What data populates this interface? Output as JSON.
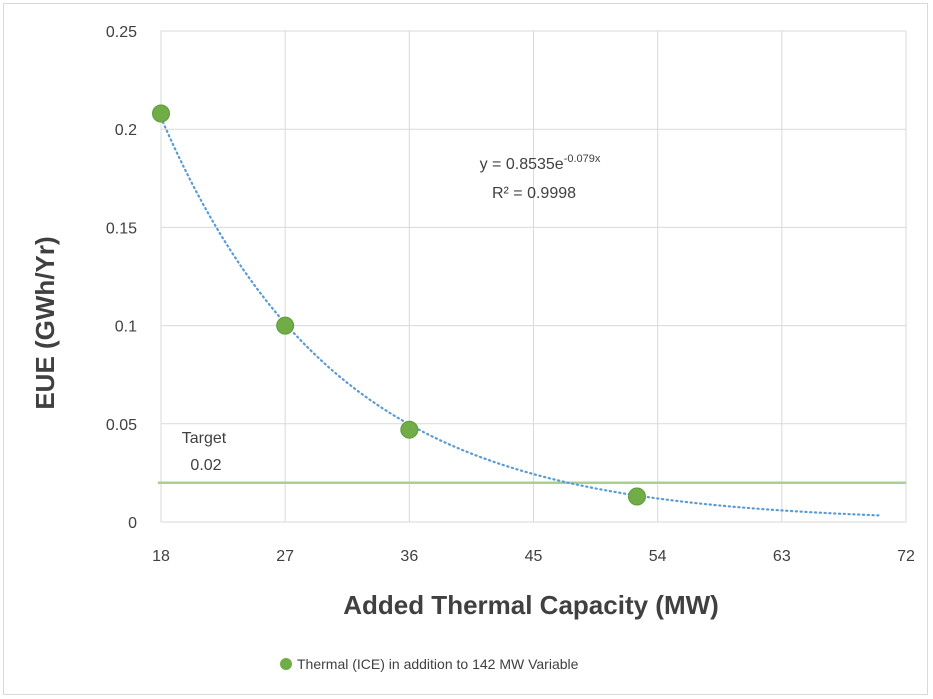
{
  "chart_data": {
    "type": "scatter",
    "xlabel": "Added Thermal Capacity (MW)",
    "ylabel": "EUE (GWh/Yr)",
    "xlim": [
      18,
      72
    ],
    "ylim": [
      0,
      0.25
    ],
    "x_ticks": [
      18,
      27,
      36,
      45,
      54,
      63,
      72
    ],
    "y_ticks": [
      0,
      0.05,
      0.1,
      0.15,
      0.2,
      0.25
    ],
    "x_tick_labels": [
      "18",
      "27",
      "36",
      "45",
      "54",
      "63",
      "72"
    ],
    "y_tick_labels": [
      "0",
      "0.05",
      "0.1",
      "0.15",
      "0.2",
      "0.25"
    ],
    "grid": true,
    "legend_position": "bottom",
    "series": [
      {
        "name": "Thermal (ICE) in addition to 142 MW Variable",
        "color": "#70ad47",
        "points": [
          {
            "x": 18,
            "y": 0.208
          },
          {
            "x": 27,
            "y": 0.1
          },
          {
            "x": 36,
            "y": 0.047
          },
          {
            "x": 52.5,
            "y": 0.013
          }
        ]
      }
    ],
    "trendline": {
      "type": "exponential",
      "a": 0.8535,
      "b": -0.079,
      "x_range": [
        18,
        70
      ],
      "color": "#5b9bd5",
      "equation_base": "y = 0.8535e",
      "equation_exp": "-0.079x",
      "r_squared": "R² = 0.9998"
    },
    "target": {
      "value": 0.02,
      "color": "#a9d18e",
      "label_line1": "Target",
      "label_line2": "0.02"
    }
  }
}
